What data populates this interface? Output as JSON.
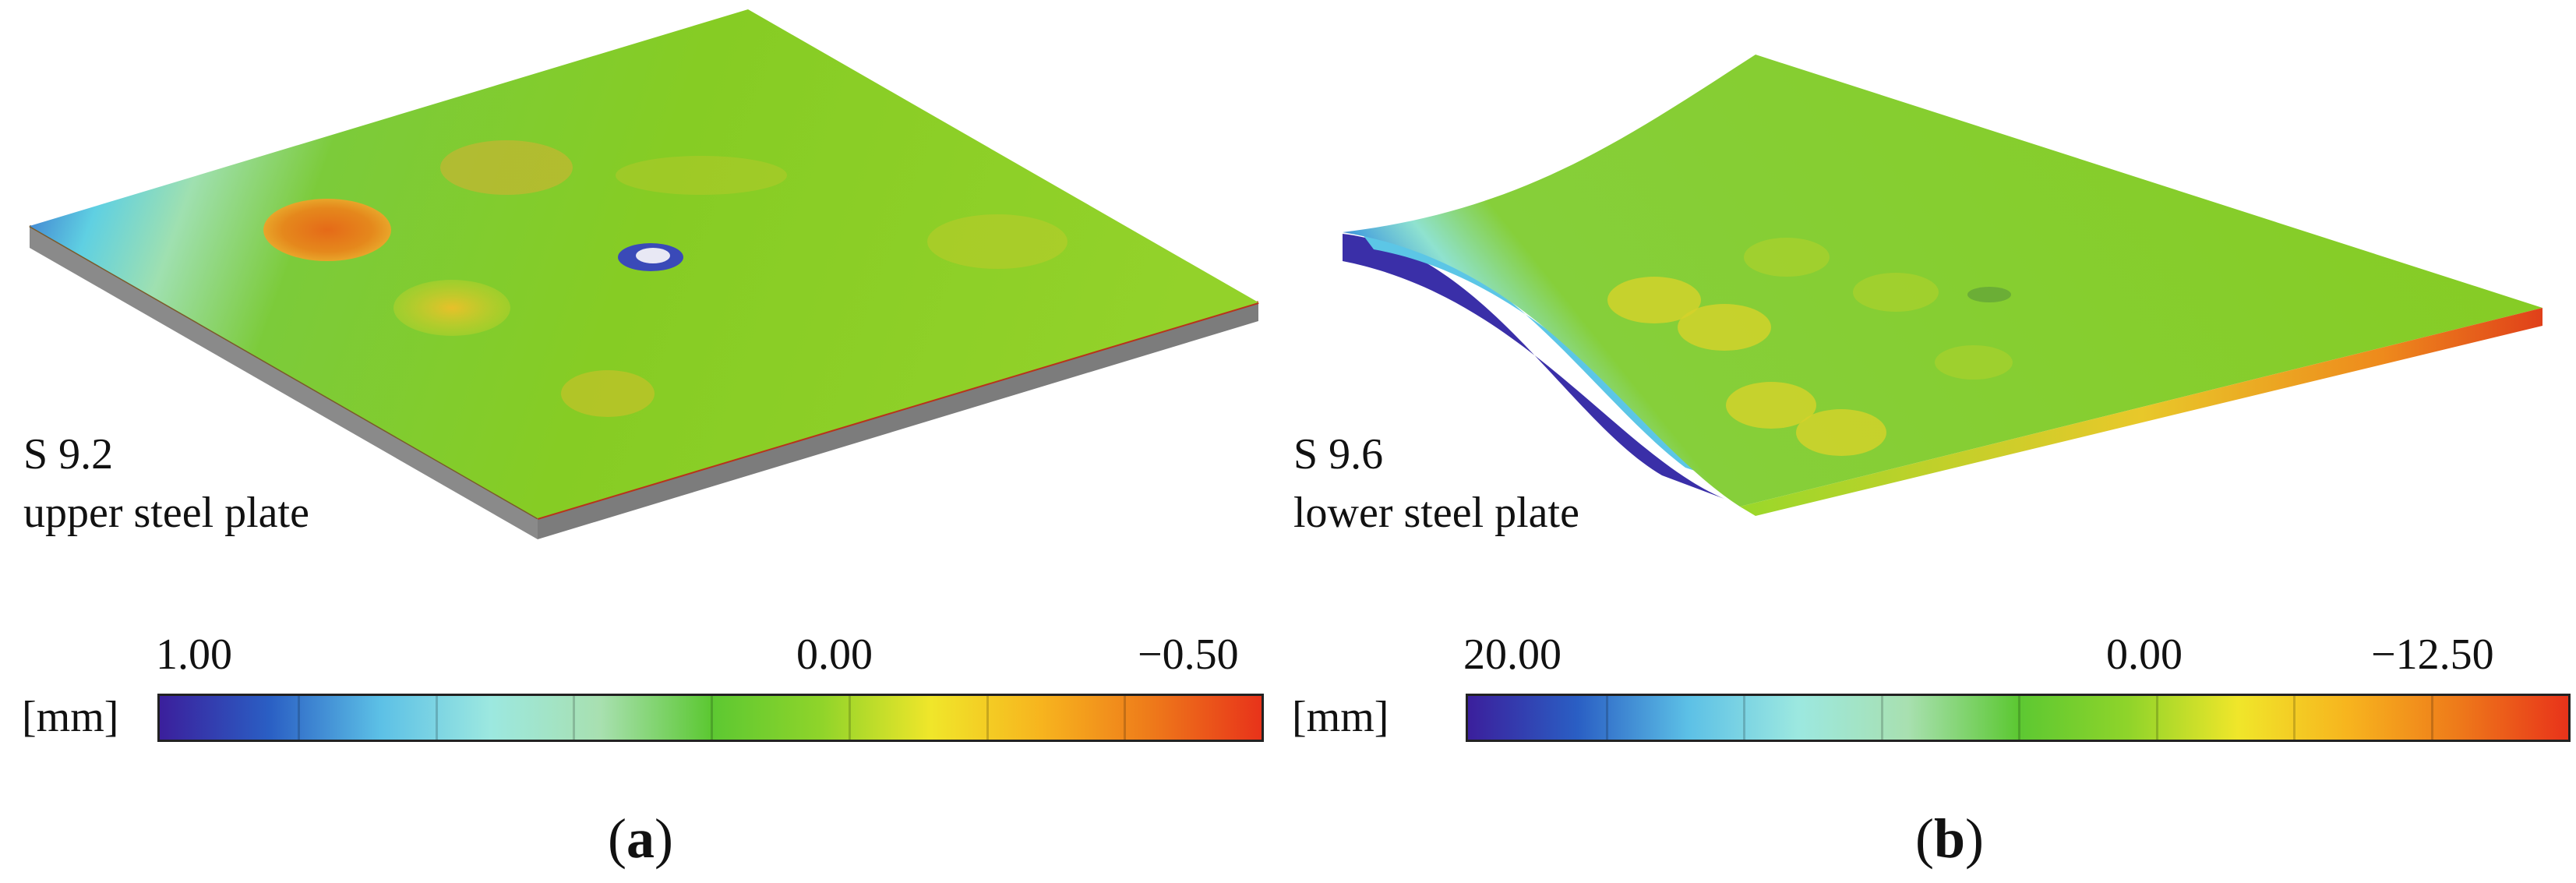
{
  "panels": [
    {
      "id": "a",
      "sample_id": "S 9.2",
      "sample_desc": "upper steel plate",
      "colorbar": {
        "unit": "[mm]",
        "tick_max": "1.00",
        "tick_zero": "0.00",
        "tick_min": "−0.50",
        "range": [
          1.0,
          -0.5
        ]
      },
      "caption": {
        "open": "(",
        "letter": "a",
        "close": ")"
      }
    },
    {
      "id": "b",
      "sample_id": "S 9.6",
      "sample_desc": "lower steel plate",
      "colorbar": {
        "unit": "[mm]",
        "tick_max": "20.00",
        "tick_zero": "0.00",
        "tick_min": "−12.50",
        "range": [
          20.0,
          -12.5
        ]
      },
      "caption": {
        "open": "(",
        "letter": "b",
        "close": ")"
      }
    }
  ],
  "colors": {
    "scale": [
      "#3b1f9c",
      "#2a5fc4",
      "#5cc0e6",
      "#9ce8e0",
      "#a8e0b0",
      "#5cc832",
      "#8fd42a",
      "#f0e62a",
      "#f7b41e",
      "#ee7a1a",
      "#e8331a"
    ],
    "plate_green": "#7fcc2a",
    "plate_side": "#8a8a8a"
  }
}
